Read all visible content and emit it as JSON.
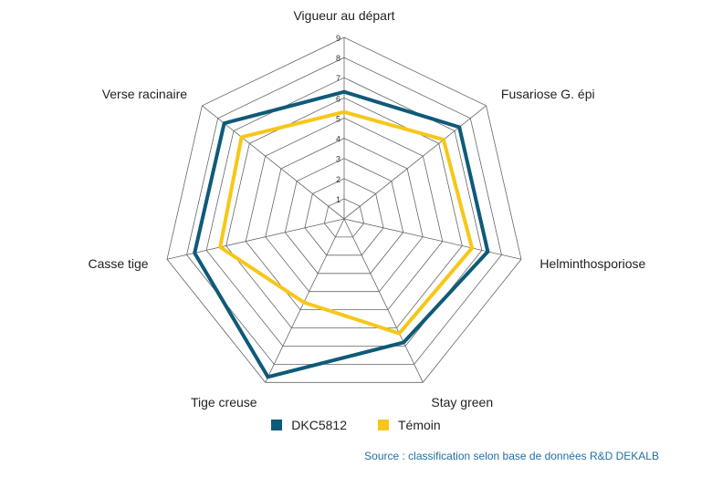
{
  "chart_data": {
    "type": "radar",
    "axes": [
      "Vigueur au départ",
      "Fusariose G. épi",
      "Helminthosporiose",
      "Stay green",
      "Tige creuse",
      "Casse tige",
      "Verse racinaire"
    ],
    "ticks": [
      "1",
      "2",
      "3",
      "4",
      "5",
      "6",
      "7",
      "8",
      "9"
    ],
    "range": [
      0,
      9
    ],
    "series": [
      {
        "name": "DKC5812",
        "color": "#0e5a78",
        "values": [
          6.3,
          7.3,
          7.3,
          6.8,
          8.7,
          7.6,
          7.6
        ]
      },
      {
        "name": "Témoin",
        "color": "#f7c718",
        "values": [
          5.3,
          6.3,
          6.5,
          6.3,
          4.6,
          6.3,
          6.5
        ]
      }
    ],
    "legend_position": "bottom",
    "source": "Source : classification selon base de données R&D DEKALB"
  },
  "source_color": "#1f6fa7"
}
